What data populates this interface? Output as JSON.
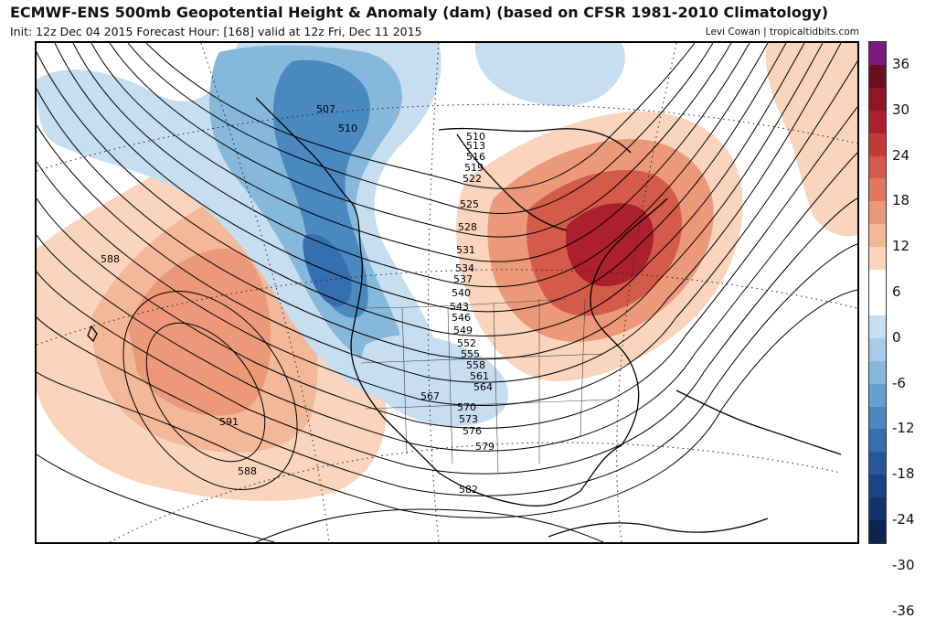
{
  "header": {
    "title": "ECMWF-ENS 500mb Geopotential Height & Anomaly (dam) (based on CFSR 1981-2010 Climatology)",
    "subtitle": "Init: 12z Dec 04 2015   Forecast Hour: [168]   valid at 12z Fri, Dec 11 2015",
    "credit": "Levi Cowan | tropicaltidbits.com"
  },
  "colorbar": {
    "colors": [
      "#7b1a7a",
      "#6b0f1e",
      "#8e1626",
      "#ac202e",
      "#c33a38",
      "#d45a4a",
      "#e2795f",
      "#eb9979",
      "#f3b898",
      "#fad4bc",
      "#ffffff",
      "#ffffff",
      "#c6def0",
      "#a6cce6",
      "#86b8dc",
      "#66a2d0",
      "#4a88c0",
      "#356fb0",
      "#26579c",
      "#1b4384",
      "#15336c",
      "#0e2450"
    ],
    "tick_labels": [
      "36",
      "30",
      "24",
      "18",
      "12",
      "6",
      "0",
      "-6",
      "-12",
      "-18",
      "-24",
      "-30",
      "-36"
    ]
  },
  "contour_labels": [
    "507",
    "510",
    "510",
    "513",
    "516",
    "519",
    "522",
    "525",
    "528",
    "531",
    "534",
    "537",
    "540",
    "543",
    "546",
    "549",
    "552",
    "555",
    "558",
    "561",
    "564",
    "567",
    "570",
    "573",
    "576",
    "579",
    "582",
    "588",
    "588",
    "591"
  ]
}
